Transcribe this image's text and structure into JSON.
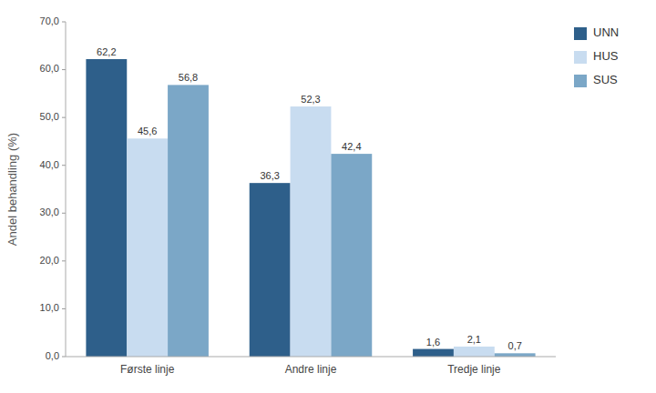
{
  "chart_data": {
    "type": "bar",
    "categories": [
      "Første linje",
      "Andre linje",
      "Tredje linje"
    ],
    "series": [
      {
        "name": "UNN",
        "color": "#2E5F8A",
        "values": [
          62.2,
          36.3,
          1.6
        ],
        "value_labels": [
          "62,2",
          "36,3",
          "1,6"
        ]
      },
      {
        "name": "HUS",
        "color": "#C8DCF0",
        "values": [
          45.6,
          52.3,
          2.1
        ],
        "value_labels": [
          "45,6",
          "52,3",
          "2,1"
        ]
      },
      {
        "name": "SUS",
        "color": "#7BA7C7",
        "values": [
          56.8,
          42.4,
          0.7
        ],
        "value_labels": [
          "56,8",
          "42,4",
          "0,7"
        ]
      }
    ],
    "ylabel": "Andel behandling (%)",
    "ylim": [
      0,
      70
    ],
    "yticks": [
      {
        "value": 0,
        "label": "0,0"
      },
      {
        "value": 10,
        "label": "10,0"
      },
      {
        "value": 20,
        "label": "20,0"
      },
      {
        "value": 30,
        "label": "30,0"
      },
      {
        "value": 40,
        "label": "40,0"
      },
      {
        "value": 50,
        "label": "50,0"
      },
      {
        "value": 60,
        "label": "60,0"
      },
      {
        "value": 70,
        "label": "70,0"
      }
    ],
    "grid": false,
    "legend": "right",
    "data_labels": true
  }
}
